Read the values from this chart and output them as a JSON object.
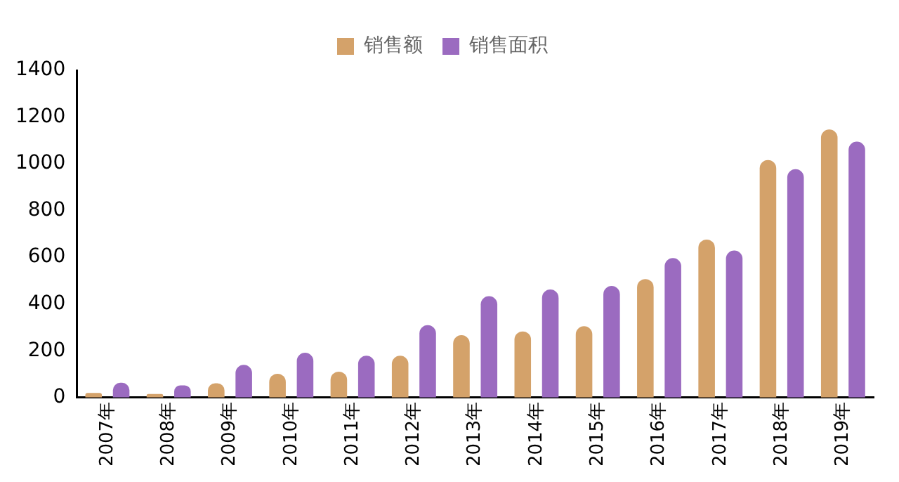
{
  "chart_data": {
    "type": "bar",
    "categories": [
      "2007年",
      "2008年",
      "2009年",
      "2010年",
      "2011年",
      "2012年",
      "2013年",
      "2014年",
      "2015年",
      "2016年",
      "2017年",
      "2018年",
      "2019年"
    ],
    "series": [
      {
        "name": "销售额",
        "color": "#d4a26a",
        "values": [
          20,
          15,
          61,
          102,
          111,
          179,
          267,
          283,
          305,
          507,
          676,
          1016,
          1147
        ]
      },
      {
        "name": "销售面积",
        "color": "#9b6bc0",
        "values": [
          63,
          52,
          140,
          192,
          179,
          310,
          434,
          462,
          477,
          597,
          629,
          977,
          1095
        ]
      }
    ],
    "ylim": [
      0,
      1400
    ],
    "yticks": [
      0,
      200,
      400,
      600,
      800,
      1000,
      1200,
      1400
    ],
    "grid": false,
    "legend": "top"
  }
}
